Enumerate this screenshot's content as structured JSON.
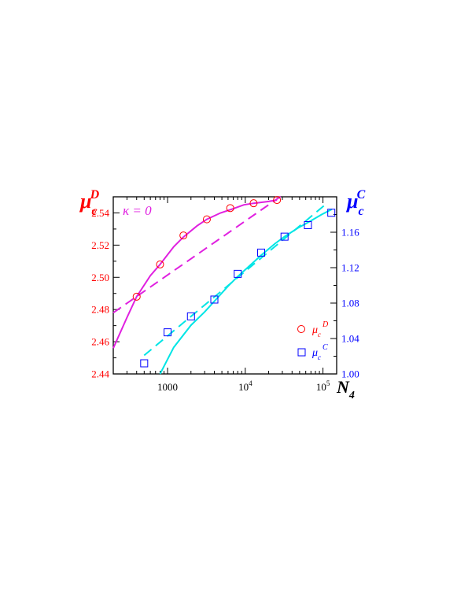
{
  "chart_data": {
    "type": "scatter",
    "x_scale": "log",
    "xlim": [
      200,
      150000
    ],
    "x_ticks": [
      {
        "value": 1000,
        "base": "1000",
        "exp": ""
      },
      {
        "value": 10000,
        "base": "10",
        "exp": "4"
      },
      {
        "value": 100000,
        "base": "10",
        "exp": "5"
      }
    ],
    "x_label": {
      "main": "N",
      "sub": "4"
    },
    "left_axis": {
      "label_main": "μ",
      "label_sub": "c",
      "label_sup": "D",
      "ylim": [
        2.44,
        2.55
      ],
      "ticks": [
        "2.44",
        "2.46",
        "2.48",
        "2.50",
        "2.52",
        "2.54"
      ],
      "color": "#ff0000"
    },
    "right_axis": {
      "label_main": "μ",
      "label_sub": "c",
      "label_sup": "C",
      "ylim": [
        1.0,
        1.2
      ],
      "ticks": [
        "1.00",
        "1.04",
        "1.08",
        "1.12",
        "1.16"
      ],
      "color": "#0000ff"
    },
    "annotation": "κ = 0",
    "grid": false,
    "legend_position": "bottom-right",
    "series": [
      {
        "name": "μcD",
        "legend_main": "μ",
        "legend_sub": "c",
        "legend_sup": "D",
        "axis": "left",
        "marker": "circle",
        "color": "#ff0000",
        "x": [
          400,
          800,
          1600,
          3200,
          6400,
          12800,
          25600
        ],
        "y": [
          2.488,
          2.508,
          2.526,
          2.536,
          2.543,
          2.546,
          2.548
        ]
      },
      {
        "name": "μcC",
        "legend_main": "μ",
        "legend_sub": "c",
        "legend_sup": "C",
        "axis": "right",
        "marker": "square",
        "color": "#0000ff",
        "x": [
          500,
          1000,
          2000,
          4000,
          8000,
          16000,
          32000,
          64000,
          128000
        ],
        "y": [
          1.012,
          1.047,
          1.065,
          1.084,
          1.113,
          1.137,
          1.155,
          1.168,
          1.182
        ]
      }
    ],
    "fits": [
      {
        "kind": "solid",
        "axis": "left",
        "color": "#e020e0",
        "x": [
          200,
          300,
          400,
          600,
          800,
          1200,
          1600,
          2400,
          3200,
          4800,
          6400,
          9600,
          12800,
          19200,
          25600
        ],
        "y": [
          2.456,
          2.475,
          2.488,
          2.501,
          2.508,
          2.519,
          2.525,
          2.532,
          2.536,
          2.54,
          2.542,
          2.545,
          2.546,
          2.547,
          2.548
        ]
      },
      {
        "kind": "dashed",
        "axis": "left",
        "color": "#e020e0",
        "x": [
          200,
          30000
        ],
        "y": [
          2.478,
          2.551
        ]
      },
      {
        "kind": "solid",
        "axis": "right",
        "color": "#00e5e5",
        "x": [
          800,
          1200,
          2000,
          3000,
          4000,
          6000,
          8000,
          12000,
          16000,
          24000,
          32000,
          48000,
          64000,
          96000,
          130000
        ],
        "y": [
          1.0,
          1.03,
          1.055,
          1.07,
          1.082,
          1.099,
          1.11,
          1.124,
          1.134,
          1.147,
          1.155,
          1.165,
          1.171,
          1.18,
          1.186
        ]
      },
      {
        "kind": "dashed",
        "axis": "right",
        "color": "#00e5e5",
        "x": [
          500,
          110000
        ],
        "y": [
          1.021,
          1.192
        ]
      }
    ]
  }
}
